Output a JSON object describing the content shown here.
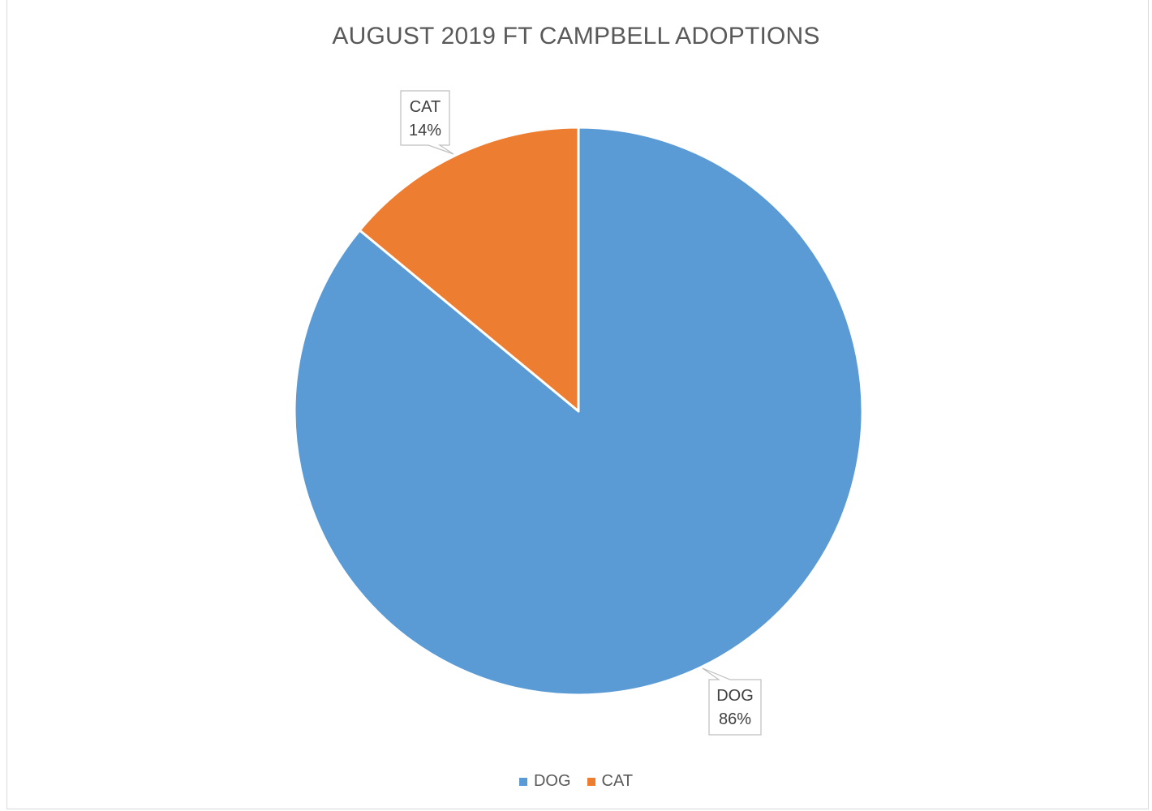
{
  "chart_data": {
    "type": "pie",
    "title": "AUGUST 2019 FT CAMPBELL ADOPTIONS",
    "slices": [
      {
        "label": "DOG",
        "percent": 86,
        "percent_label": "86%",
        "color": "#5B9BD5"
      },
      {
        "label": "CAT",
        "percent": 14,
        "percent_label": "14%",
        "color": "#ED7D31"
      }
    ],
    "legend": {
      "position": "bottom",
      "items": [
        {
          "label": "DOG",
          "color": "#5B9BD5"
        },
        {
          "label": "CAT",
          "color": "#ED7D31"
        }
      ]
    },
    "data_labels": "callout"
  }
}
